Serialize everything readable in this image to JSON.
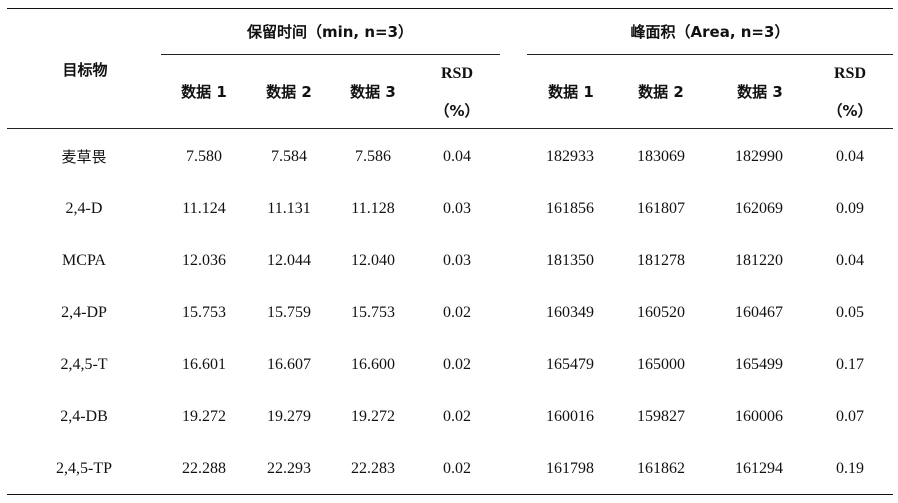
{
  "table": {
    "header": {
      "target": "目标物",
      "group_retention": "保留时间（min, n=3）",
      "group_area": "峰面积（Area, n=3）",
      "rt_cols": [
        "数据 1",
        "数据 2",
        "数据 3"
      ],
      "area_cols": [
        "数据 1",
        "数据 2",
        "数据 3"
      ],
      "rsd_label": "RSD",
      "rsd_unit": "（%）"
    },
    "rows": [
      {
        "name": "麦草畏",
        "rt": [
          "7.580",
          "7.584",
          "7.586"
        ],
        "rt_rsd": "0.04",
        "area": [
          "182933",
          "183069",
          "182990"
        ],
        "area_rsd": "0.04"
      },
      {
        "name": "2,4-D",
        "rt": [
          "11.124",
          "11.131",
          "11.128"
        ],
        "rt_rsd": "0.03",
        "area": [
          "161856",
          "161807",
          "162069"
        ],
        "area_rsd": "0.09"
      },
      {
        "name": "MCPA",
        "rt": [
          "12.036",
          "12.044",
          "12.040"
        ],
        "rt_rsd": "0.03",
        "area": [
          "181350",
          "181278",
          "181220"
        ],
        "area_rsd": "0.04"
      },
      {
        "name": "2,4-DP",
        "rt": [
          "15.753",
          "15.759",
          "15.753"
        ],
        "rt_rsd": "0.02",
        "area": [
          "160349",
          "160520",
          "160467"
        ],
        "area_rsd": "0.05"
      },
      {
        "name": "2,4,5-T",
        "rt": [
          "16.601",
          "16.607",
          "16.600"
        ],
        "rt_rsd": "0.02",
        "area": [
          "165479",
          "165000",
          "165499"
        ],
        "area_rsd": "0.17"
      },
      {
        "name": "2,4-DB",
        "rt": [
          "19.272",
          "19.279",
          "19.272"
        ],
        "rt_rsd": "0.02",
        "area": [
          "160016",
          "159827",
          "160006"
        ],
        "area_rsd": "0.07"
      },
      {
        "name": "2,4,5-TP",
        "rt": [
          "22.288",
          "22.293",
          "22.283"
        ],
        "rt_rsd": "0.02",
        "area": [
          "161798",
          "161862",
          "161294"
        ],
        "area_rsd": "0.19"
      }
    ]
  }
}
